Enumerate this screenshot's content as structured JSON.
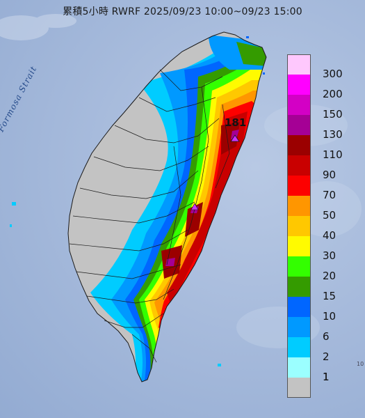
{
  "title": "累積5小時 RWRF 2025/09/23 10:00~09/23 15:00",
  "strait_label": "Formosa Strait",
  "max_value_label": "181",
  "edge_label": "10",
  "legend": [
    {
      "label": "300",
      "color": "#fec8fd"
    },
    {
      "label": "200",
      "color": "#ff00ff"
    },
    {
      "label": "150",
      "color": "#d300c5"
    },
    {
      "label": "130",
      "color": "#a50095"
    },
    {
      "label": "110",
      "color": "#9b0000"
    },
    {
      "label": "90",
      "color": "#c90000"
    },
    {
      "label": "70",
      "color": "#fd0000"
    },
    {
      "label": "50",
      "color": "#ff9600"
    },
    {
      "label": "40",
      "color": "#ffc800"
    },
    {
      "label": "30",
      "color": "#fffb00"
    },
    {
      "label": "20",
      "color": "#33ff00"
    },
    {
      "label": "15",
      "color": "#349b00"
    },
    {
      "label": "10",
      "color": "#0066ff"
    },
    {
      "label": "6",
      "color": "#0099ff"
    },
    {
      "label": "2",
      "color": "#00ccff"
    },
    {
      "label": "1",
      "color": "#9bffff"
    },
    {
      "label": "",
      "color": "#c3c3c3"
    }
  ],
  "legend_extra_label": "1"
}
